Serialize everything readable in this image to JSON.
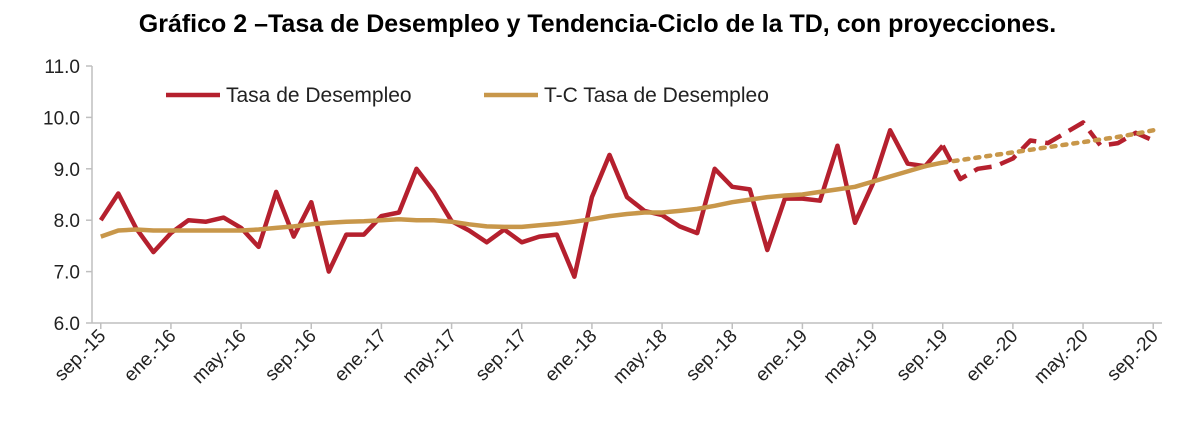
{
  "chart_data": {
    "type": "line",
    "title": "Gráfico 2 –Tasa de Desempleo y Tendencia-Ciclo de la TD, con proyecciones.",
    "xlabel": "",
    "ylabel": "",
    "ylim": [
      6.0,
      11.0
    ],
    "yticks": [
      "6.0",
      "7.0",
      "8.0",
      "9.0",
      "10.0",
      "11.0"
    ],
    "xtick_labels": [
      "sep.-15",
      "ene.-16",
      "may.-16",
      "sep.-16",
      "ene.-17",
      "may.-17",
      "sep.-17",
      "ene.-18",
      "may.-18",
      "sep.-18",
      "ene.-19",
      "may.-19",
      "sep.-19",
      "ene.-20",
      "may.-20",
      "sep.-20"
    ],
    "x": [
      "sep.-15",
      "oct.-15",
      "nov.-15",
      "dic.-15",
      "ene.-16",
      "feb.-16",
      "mar.-16",
      "abr.-16",
      "may.-16",
      "jun.-16",
      "jul.-16",
      "ago.-16",
      "sep.-16",
      "oct.-16",
      "nov.-16",
      "dic.-16",
      "ene.-17",
      "feb.-17",
      "mar.-17",
      "abr.-17",
      "may.-17",
      "jun.-17",
      "jul.-17",
      "ago.-17",
      "sep.-17",
      "oct.-17",
      "nov.-17",
      "dic.-17",
      "ene.-18",
      "feb.-18",
      "mar.-18",
      "abr.-18",
      "may.-18",
      "jun.-18",
      "jul.-18",
      "ago.-18",
      "sep.-18",
      "oct.-18",
      "nov.-18",
      "dic.-18",
      "ene.-19",
      "feb.-19",
      "mar.-19",
      "abr.-19",
      "may.-19",
      "jun.-19",
      "jul.-19",
      "ago.-19",
      "sep.-19",
      "oct.-19",
      "nov.-19",
      "dic.-19",
      "ene.-20",
      "feb.-20",
      "mar.-20",
      "abr.-20",
      "may.-20",
      "jun.-20",
      "jul.-20",
      "ago.-20",
      "sep.-20"
    ],
    "grid": false,
    "legend": "top-left",
    "series": [
      {
        "name": "Tasa de Desempleo",
        "color": "#b5202e",
        "values": [
          8.0,
          8.52,
          7.85,
          7.38,
          7.75,
          8.0,
          7.97,
          8.05,
          7.85,
          7.48,
          8.55,
          7.68,
          8.35,
          7.0,
          7.72,
          7.72,
          8.08,
          8.15,
          9.0,
          8.55,
          7.98,
          7.8,
          7.57,
          7.82,
          7.57,
          7.68,
          7.72,
          6.9,
          8.45,
          9.27,
          8.45,
          8.18,
          8.1,
          7.88,
          7.75,
          9.0,
          8.65,
          8.6,
          7.42,
          8.42,
          8.42,
          8.38,
          9.45,
          7.95,
          8.7,
          9.75,
          9.1,
          9.05,
          9.45,
          null,
          null,
          null,
          null,
          null,
          null,
          null,
          null,
          null,
          null,
          null,
          null
        ]
      },
      {
        "name": "",
        "color": "#b5202e",
        "style": "dashed",
        "values": [
          null,
          null,
          null,
          null,
          null,
          null,
          null,
          null,
          null,
          null,
          null,
          null,
          null,
          null,
          null,
          null,
          null,
          null,
          null,
          null,
          null,
          null,
          null,
          null,
          null,
          null,
          null,
          null,
          null,
          null,
          null,
          null,
          null,
          null,
          null,
          null,
          null,
          null,
          null,
          null,
          null,
          null,
          null,
          null,
          null,
          null,
          null,
          null,
          9.45,
          8.8,
          9.0,
          9.05,
          9.2,
          9.55,
          9.5,
          9.7,
          9.9,
          9.45,
          9.5,
          9.7,
          9.55
        ]
      },
      {
        "name": "T-C Tasa de Desempleo",
        "color": "#c8974a",
        "values": [
          7.68,
          7.8,
          7.82,
          7.8,
          7.8,
          7.8,
          7.8,
          7.8,
          7.8,
          7.82,
          7.85,
          7.88,
          7.92,
          7.95,
          7.97,
          7.98,
          8.0,
          8.02,
          8.0,
          8.0,
          7.97,
          7.92,
          7.88,
          7.87,
          7.87,
          7.9,
          7.93,
          7.97,
          8.02,
          8.08,
          8.12,
          8.15,
          8.15,
          8.18,
          8.22,
          8.28,
          8.35,
          8.4,
          8.45,
          8.48,
          8.5,
          8.55,
          8.6,
          8.65,
          8.75,
          8.85,
          8.95,
          9.05,
          9.12,
          null,
          null,
          null,
          null,
          null,
          null,
          null,
          null,
          null,
          null,
          null,
          null
        ]
      },
      {
        "name": "",
        "color": "#c8974a",
        "style": "dotted",
        "values": [
          null,
          null,
          null,
          null,
          null,
          null,
          null,
          null,
          null,
          null,
          null,
          null,
          null,
          null,
          null,
          null,
          null,
          null,
          null,
          null,
          null,
          null,
          null,
          null,
          null,
          null,
          null,
          null,
          null,
          null,
          null,
          null,
          null,
          null,
          null,
          null,
          null,
          null,
          null,
          null,
          null,
          null,
          null,
          null,
          null,
          null,
          null,
          null,
          9.12,
          9.17,
          9.22,
          9.27,
          9.32,
          9.37,
          9.42,
          9.47,
          9.52,
          9.57,
          9.62,
          9.68,
          9.75
        ]
      }
    ]
  }
}
